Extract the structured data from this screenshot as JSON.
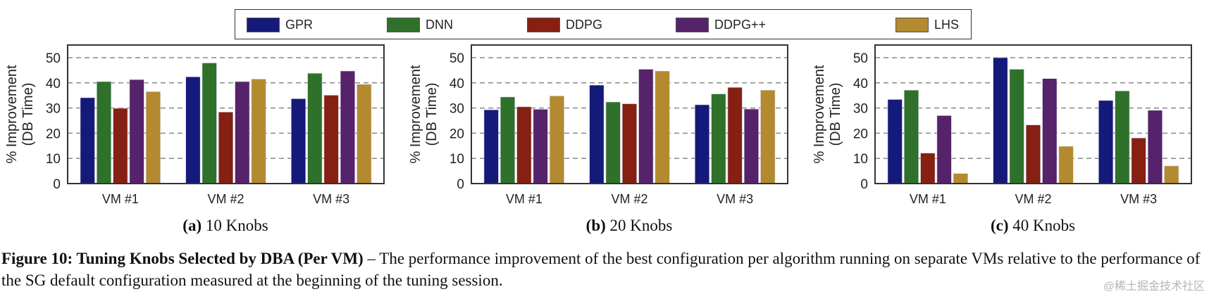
{
  "legend": [
    {
      "name": "GPR",
      "color": "#141a7a"
    },
    {
      "name": "DNN",
      "color": "#2f712b"
    },
    {
      "name": "DDPG",
      "color": "#862013"
    },
    {
      "name": "DDPG++",
      "color": "#562269"
    },
    {
      "name": "LHS",
      "color": "#b38a2f"
    }
  ],
  "chart_data": [
    {
      "type": "bar",
      "title": "10 Knobs",
      "label": "(a)",
      "xlabel": "",
      "ylabel": "% Improvement (DB Time)",
      "ylim": [
        0,
        55
      ],
      "yticks": [
        0,
        10,
        20,
        30,
        40,
        50
      ],
      "grid": "horizontal dashed",
      "categories": [
        "VM #1",
        "VM #2",
        "VM #3"
      ],
      "series": [
        {
          "name": "GPR",
          "values": [
            34.1,
            42.4,
            33.7
          ]
        },
        {
          "name": "DNN",
          "values": [
            40.5,
            47.9,
            43.8
          ]
        },
        {
          "name": "DDPG",
          "values": [
            29.9,
            28.4,
            35.1
          ]
        },
        {
          "name": "DDPG++",
          "values": [
            41.3,
            40.5,
            44.7
          ]
        },
        {
          "name": "LHS",
          "values": [
            36.5,
            41.5,
            39.4
          ]
        }
      ]
    },
    {
      "type": "bar",
      "title": "20 Knobs",
      "label": "(b)",
      "xlabel": "",
      "ylabel": "% Improvement (DB Time)",
      "ylim": [
        0,
        55
      ],
      "yticks": [
        0,
        10,
        20,
        30,
        40,
        50
      ],
      "grid": "horizontal dashed",
      "categories": [
        "VM #1",
        "VM #2",
        "VM #3"
      ],
      "series": [
        {
          "name": "GPR",
          "values": [
            29.3,
            39.1,
            31.3
          ]
        },
        {
          "name": "DNN",
          "values": [
            34.4,
            32.4,
            35.6
          ]
        },
        {
          "name": "DDPG",
          "values": [
            30.5,
            31.7,
            38.2
          ]
        },
        {
          "name": "DDPG++",
          "values": [
            29.5,
            45.4,
            29.6
          ]
        },
        {
          "name": "LHS",
          "values": [
            34.8,
            44.7,
            37.1
          ]
        }
      ]
    },
    {
      "type": "bar",
      "title": "40 Knobs",
      "label": "(c)",
      "xlabel": "",
      "ylabel": "% Improvement (DB Time)",
      "ylim": [
        0,
        55
      ],
      "yticks": [
        0,
        10,
        20,
        30,
        40,
        50
      ],
      "grid": "horizontal dashed",
      "categories": [
        "VM #1",
        "VM #2",
        "VM #3"
      ],
      "series": [
        {
          "name": "GPR",
          "values": [
            33.4,
            50.0,
            33.0
          ]
        },
        {
          "name": "DNN",
          "values": [
            37.1,
            45.4,
            36.8
          ]
        },
        {
          "name": "DDPG",
          "values": [
            12.1,
            23.3,
            18.1
          ]
        },
        {
          "name": "DDPG++",
          "values": [
            27.0,
            41.7,
            29.1
          ]
        },
        {
          "name": "LHS",
          "values": [
            4.0,
            14.8,
            7.0
          ]
        }
      ]
    }
  ],
  "ylabel_line1": "% Improvement",
  "ylabel_line2": "(DB Time)",
  "caption": {
    "bold": "Figure 10: Tuning Knobs Selected by DBA (Per VM)",
    "text": " – The performance improvement of the best configuration per algorithm running on separate VMs relative to the performance of the SG default configuration measured at the beginning of the tuning session."
  },
  "watermark": "@稀土掘金技术社区"
}
